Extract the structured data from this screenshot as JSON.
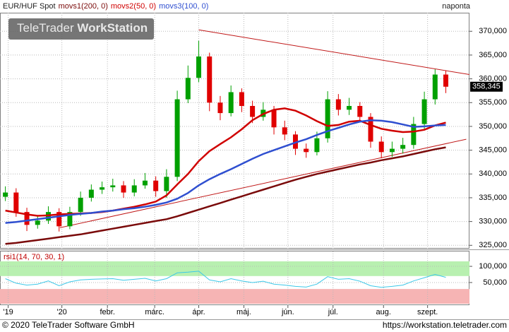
{
  "chart_data": [
    {
      "type": "candlestick",
      "title": "EUR/HUF Spot",
      "period": "naponta",
      "watermark": [
        "TeleTrader",
        "WorkStation"
      ],
      "up_color": "#00a000",
      "down_color": "#e00000",
      "xlim": [
        -0.5,
        43.2
      ],
      "xticks": [
        {
          "value": 0.26,
          "label": "'19"
        },
        {
          "value": 5.26,
          "label": "'20"
        },
        {
          "value": 9.5,
          "label": "febr."
        },
        {
          "value": 13.9,
          "label": "márc."
        },
        {
          "value": 18,
          "label": "ápr."
        },
        {
          "value": 22.2,
          "label": "máj."
        },
        {
          "value": 26.3,
          "label": "jún."
        },
        {
          "value": 30.5,
          "label": "júl."
        },
        {
          "value": 35.2,
          "label": "aug."
        },
        {
          "value": 39.3,
          "label": "szept."
        }
      ],
      "ylim": [
        324300,
        373900
      ],
      "yticks": [
        {
          "value": 325000,
          "label": "325,000"
        },
        {
          "value": 330000,
          "label": "330,000"
        },
        {
          "value": 335000,
          "label": "335,000"
        },
        {
          "value": 340000,
          "label": "340,000"
        },
        {
          "value": 345000,
          "label": "345,000"
        },
        {
          "value": 350000,
          "label": "350,000"
        },
        {
          "value": 355000,
          "label": "355,000"
        },
        {
          "value": 360000,
          "label": "360,000"
        },
        {
          "value": 365000,
          "label": "365,000"
        },
        {
          "value": 370000,
          "label": "370,000"
        }
      ],
      "grid": true,
      "candles": {
        "open": [
          335200,
          336100,
          332000,
          329300,
          330200,
          332000,
          329000,
          332000,
          335000,
          336700,
          337200,
          337600,
          336100,
          337600,
          338600,
          336400,
          339400,
          355700,
          360200,
          364700,
          355000,
          352800,
          357200,
          354300,
          352000,
          353500,
          349800,
          348300,
          345300,
          344600,
          347500,
          355700,
          353500,
          354300,
          352000,
          346800,
          344600,
          345300,
          346100,
          350500,
          355700,
          360900
        ],
        "high": [
          337400,
          337000,
          332900,
          331300,
          333200,
          332800,
          333100,
          336300,
          337800,
          338400,
          339000,
          338500,
          338900,
          340200,
          339500,
          341000,
          357500,
          362800,
          368000,
          365500,
          356400,
          358600,
          358000,
          355400,
          355100,
          354300,
          351200,
          349000,
          346400,
          348900,
          357400,
          356800,
          356000,
          355100,
          352800,
          347900,
          346800,
          347600,
          352000,
          357300,
          362000,
          361800
        ],
        "low": [
          334300,
          331000,
          328000,
          328500,
          329500,
          327900,
          328400,
          331200,
          334200,
          335800,
          336300,
          335000,
          335300,
          336900,
          335200,
          335000,
          338500,
          354900,
          359300,
          353200,
          351300,
          352100,
          353000,
          350700,
          351200,
          348300,
          347100,
          344000,
          343400,
          343900,
          346600,
          352300,
          352400,
          350900,
          345500,
          343300,
          343600,
          344300,
          345300,
          349500,
          354600,
          357000
        ],
        "close": [
          336100,
          332000,
          329300,
          330200,
          332000,
          329000,
          332000,
          335000,
          336700,
          337200,
          337600,
          336100,
          337600,
          338600,
          336400,
          339400,
          355700,
          360200,
          364700,
          355000,
          352800,
          357200,
          354300,
          352000,
          353500,
          349800,
          348300,
          345300,
          344600,
          347500,
          355700,
          353500,
          354300,
          352000,
          346800,
          344600,
          345300,
          346100,
          350500,
          355700,
          360900,
          358345
        ]
      },
      "last_label": {
        "value": 358345,
        "label": "358,345"
      },
      "overlays": [
        {
          "name": "movs1(200, 0)",
          "color": "#7a0a0a",
          "values": [
            325300,
            325500,
            325800,
            326100,
            326400,
            326700,
            327000,
            327300,
            327700,
            328100,
            328500,
            328900,
            329300,
            329700,
            330100,
            330500,
            331100,
            331800,
            332500,
            333200,
            333900,
            334600,
            335300,
            336000,
            336700,
            337400,
            338100,
            338800,
            339400,
            340000,
            340500,
            341000,
            341500,
            342000,
            342400,
            342900,
            343300,
            343700,
            344200,
            344700,
            345200,
            345600
          ]
        },
        {
          "name": "movs2(50, 0)",
          "color": "#d00000",
          "values": [
            332300,
            331900,
            331500,
            331200,
            331300,
            331500,
            331600,
            331700,
            331800,
            332000,
            332300,
            332700,
            333100,
            333600,
            334200,
            335500,
            337800,
            340000,
            342700,
            344800,
            346300,
            347700,
            349400,
            351300,
            352600,
            353500,
            353800,
            353300,
            352300,
            351100,
            350100,
            350300,
            351000,
            351200,
            350300,
            349500,
            349100,
            348800,
            348900,
            349300,
            350200,
            350800
          ]
        },
        {
          "name": "movs3(100, 0)",
          "color": "#2f4fd0",
          "values": [
            329700,
            329900,
            330200,
            330500,
            330800,
            331100,
            331400,
            331600,
            331800,
            332100,
            332300,
            332600,
            332800,
            333100,
            333500,
            334000,
            334800,
            336000,
            337600,
            338900,
            340000,
            341000,
            342100,
            343200,
            344200,
            345000,
            345800,
            346600,
            347300,
            348200,
            349000,
            349700,
            350400,
            351000,
            351300,
            351200,
            350900,
            350400,
            349900,
            350000,
            350200,
            350300
          ]
        }
      ],
      "trendlines": [
        {
          "color": "#c01818",
          "x": [
            18,
            43.2
          ],
          "y": [
            370300,
            360900
          ]
        },
        {
          "color": "#c01818",
          "x": [
            5.07,
            42.9
          ],
          "y": [
            328700,
            347300
          ]
        }
      ]
    },
    {
      "type": "line",
      "title": "rsi1(14, 70, 30, 1)",
      "overbought": 70,
      "oversold": 30,
      "xlim": [
        -0.5,
        43.2
      ],
      "ylim": [
        -20,
        146
      ],
      "yticks": [
        {
          "value": 50,
          "label": "50,000"
        },
        {
          "value": 100,
          "label": "100,000"
        }
      ],
      "series": [
        {
          "color": "#3cc8e8",
          "values": [
            62,
            48,
            42,
            45,
            55,
            40,
            52,
            58,
            60,
            61,
            62,
            57,
            60,
            63,
            55,
            62,
            80,
            82,
            85,
            58,
            52,
            62,
            55,
            50,
            54,
            45,
            42,
            38,
            36,
            45,
            68,
            60,
            62,
            54,
            40,
            35,
            38,
            42,
            55,
            65,
            75,
            66
          ]
        }
      ]
    }
  ],
  "footer": {
    "copyright": "© 2020 TeleTrader Software GmbH",
    "url": "https://workstation.teletrader.com"
  }
}
